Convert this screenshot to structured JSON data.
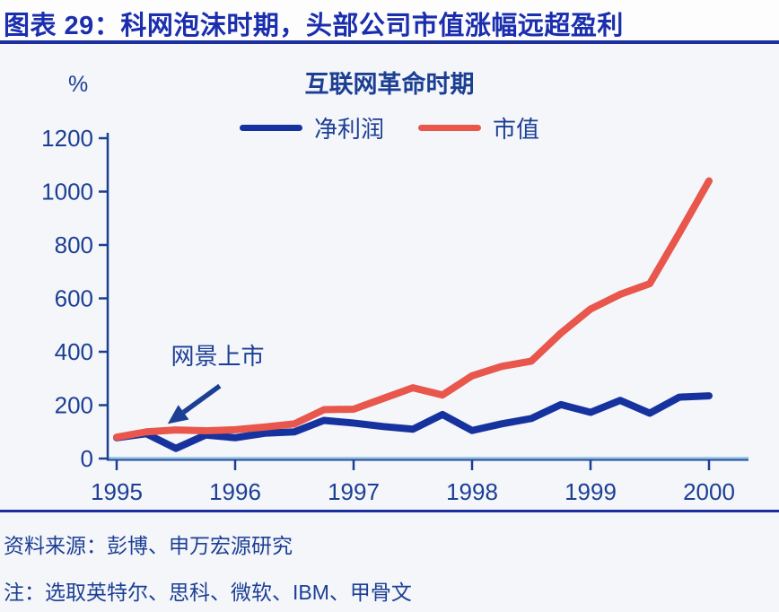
{
  "header": {
    "title": "图表 29：科网泡沫时期，头部公司市值涨幅远超盈利"
  },
  "colors": {
    "header_text": "#1a2eae",
    "body_text": "#1c3f94",
    "divider": "#1b2f9e",
    "net_profit_line": "#16329e",
    "market_cap_line": "#e8564c",
    "x_axis_light": "#9fc8e4",
    "background": "#f4f6fa"
  },
  "chart_data": {
    "type": "line",
    "title": "互联网革命时期",
    "xlabel": "",
    "ylabel": "%",
    "x": [
      1995,
      1995.25,
      1995.5,
      1995.75,
      1996,
      1996.25,
      1996.5,
      1996.75,
      1997,
      1997.25,
      1997.5,
      1997.75,
      1998,
      1998.25,
      1998.5,
      1998.75,
      1999,
      1999.25,
      1999.5,
      1999.75,
      2000
    ],
    "series": [
      {
        "key": "net_profit",
        "name": "净利润",
        "color": "#16329e",
        "values": [
          78,
          93,
          38,
          88,
          78,
          95,
          100,
          143,
          133,
          120,
          110,
          165,
          105,
          130,
          150,
          202,
          173,
          218,
          170,
          230,
          235
        ]
      },
      {
        "key": "market_cap",
        "name": "市值",
        "color": "#e8564c",
        "values": [
          80,
          100,
          107,
          104,
          108,
          118,
          130,
          183,
          185,
          225,
          265,
          238,
          310,
          345,
          365,
          470,
          560,
          615,
          655,
          845,
          1040
        ]
      }
    ],
    "xticks": [
      1995,
      1996,
      1997,
      1998,
      1999,
      2000
    ],
    "yticks": [
      0,
      200,
      400,
      600,
      800,
      1000,
      1200
    ],
    "xlim": [
      1995,
      2000
    ],
    "ylim": [
      0,
      1200
    ],
    "grid": false,
    "legend_position": "top-center",
    "annotation": {
      "text": "网景上市",
      "arrow_from": [
        1995.87,
        272
      ],
      "arrow_to": [
        1995.43,
        130
      ]
    }
  },
  "footer": {
    "source": "资料来源：彭博、申万宏源研究",
    "note": "注：选取英特尔、思科、微软、IBM、甲骨文"
  }
}
